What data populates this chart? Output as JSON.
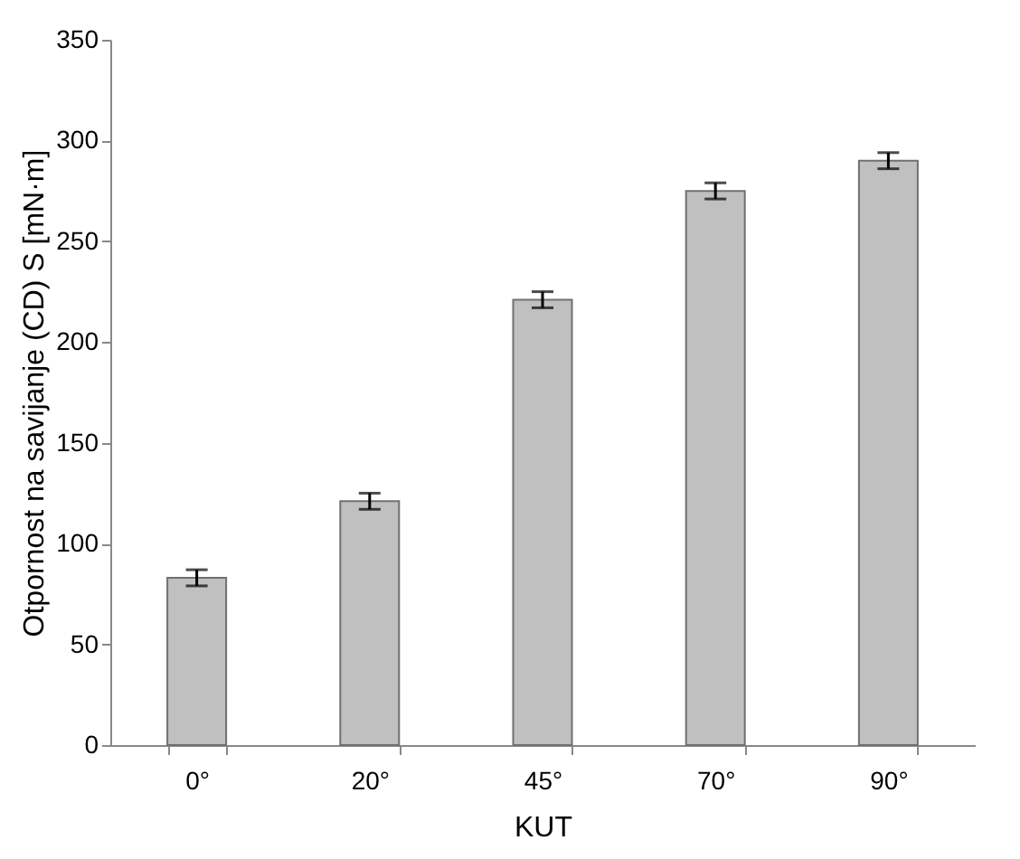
{
  "chart_data": {
    "type": "bar",
    "xlabel": "KUT",
    "ylabel": "Otpornost na savijanje (CD) S [mN·m]",
    "categories": [
      "0°",
      "20°",
      "45°",
      "70°",
      "90°"
    ],
    "series": [
      {
        "color": "#c0c0c0",
        "values": [
          83,
          121,
          221,
          275,
          290
        ],
        "errors": [
          4,
          4,
          4,
          4,
          4
        ]
      }
    ],
    "ylim": [
      0,
      350
    ],
    "yticks": [
      0,
      50,
      100,
      150,
      200,
      250,
      300,
      350
    ],
    "grid": false
  }
}
